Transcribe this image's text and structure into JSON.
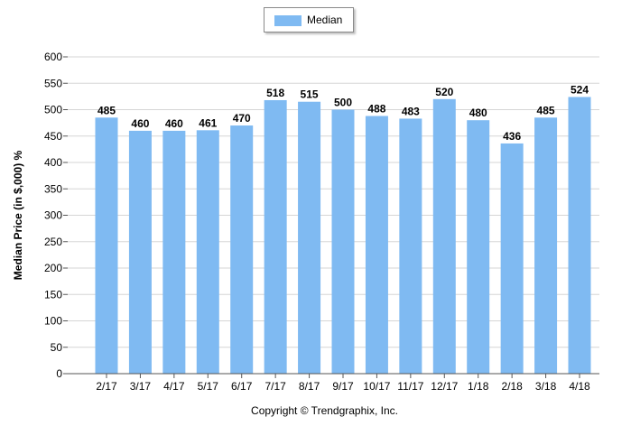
{
  "chart_data": {
    "type": "bar",
    "categories": [
      "2/17",
      "3/17",
      "4/17",
      "5/17",
      "6/17",
      "7/17",
      "8/17",
      "9/17",
      "10/17",
      "11/17",
      "12/17",
      "1/18",
      "2/18",
      "3/18",
      "4/18"
    ],
    "series": [
      {
        "name": "Median",
        "values": [
          485,
          460,
          460,
          461,
          470,
          518,
          515,
          500,
          488,
          483,
          520,
          480,
          436,
          485,
          524
        ]
      }
    ],
    "ylabel": "Median Price (in $,000) %",
    "xlabel": "",
    "ylim": [
      0,
      600
    ],
    "yticks": [
      0,
      50,
      100,
      150,
      200,
      250,
      300,
      350,
      400,
      450,
      500,
      550,
      600
    ],
    "legend_position": "top-center",
    "grid": true,
    "bar_color": "#7fbaf2",
    "footer": "Copyright © Trendgraphix, Inc."
  }
}
